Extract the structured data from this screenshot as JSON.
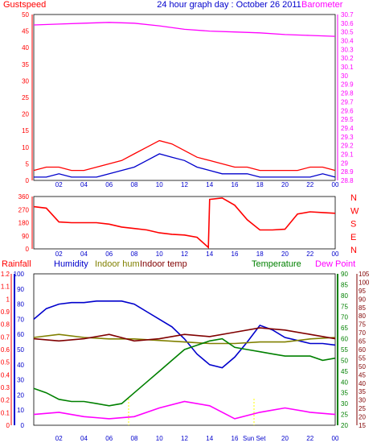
{
  "title": "24 hour graph day : October 26 2011",
  "colors": {
    "gust": "#ff0000",
    "wind": "#0000cc",
    "barometer": "#ff00ff",
    "direction": "#ff0000",
    "humidity": "#0000cc",
    "indoor_hum": "#808000",
    "indoor_temp": "#800000",
    "temperature": "#008000",
    "dew_point": "#ff00ff",
    "rainfall": "#ff0000",
    "sun": "#ffff00"
  },
  "panels": {
    "wind": {
      "left_label": "Gustspeed",
      "right_label": "Barometer",
      "left_ticks": [
        "0",
        "5",
        "10",
        "15",
        "20",
        "25",
        "30",
        "35",
        "40",
        "45",
        "50"
      ],
      "right_ticks": [
        "28.8",
        "28.9",
        "29",
        "29.1",
        "29.2",
        "29.3",
        "29.4",
        "29.5",
        "29.6",
        "29.7",
        "29.8",
        "29.9",
        "30",
        "30.1",
        "30.2",
        "30.3",
        "30.4",
        "30.5",
        "30.6",
        "30.7"
      ]
    },
    "direction": {
      "left_ticks": [
        "0",
        "90",
        "180",
        "270",
        "360"
      ],
      "right_letters": [
        "N",
        "W",
        "S",
        "E",
        "N"
      ]
    },
    "temp": {
      "labels": {
        "rainfall": "Rainfall",
        "humidity": "Humidity",
        "indoor_hum": "Indoor hum",
        "indoor_temp": "Indoor temp",
        "temperature": "Temperature",
        "dew_point": "Dew Point"
      },
      "rain_ticks": [
        "0",
        "0.1",
        "0.2",
        "0.3",
        "0.4",
        "0.5",
        "0.6",
        "0.7",
        "0.8",
        "0.9",
        "1",
        "1.1",
        "1.2"
      ],
      "hum_ticks": [
        "0",
        "10",
        "20",
        "30",
        "40",
        "50",
        "60",
        "70",
        "80",
        "90",
        "100"
      ],
      "temp_ticks": [
        "20",
        "25",
        "30",
        "35",
        "40",
        "45",
        "50",
        "55",
        "60",
        "65",
        "70",
        "75",
        "80",
        "85",
        "90"
      ],
      "dew_ticks": [
        "15",
        "20",
        "25",
        "30",
        "35",
        "40",
        "45",
        "50",
        "55",
        "60",
        "65",
        "70",
        "75",
        "80",
        "85",
        "90",
        "95",
        "100",
        "105"
      ],
      "sun_set": "Sun Set"
    }
  },
  "x_ticks": [
    "02",
    "04",
    "06",
    "08",
    "10",
    "12",
    "14",
    "16",
    "18",
    "20",
    "22",
    "00"
  ],
  "chart_data": {
    "type": "line",
    "title": "24 hour graph day : October 26 2011",
    "x_label": "",
    "panels": [
      {
        "series": [
          {
            "name": "Gustspeed",
            "unit_axis": "left",
            "x": [
              0,
              1,
              2,
              3,
              4,
              5,
              6,
              7,
              8,
              9,
              10,
              11,
              12,
              13,
              14,
              15,
              16,
              17,
              18,
              19,
              20,
              21,
              22,
              23,
              24
            ],
            "y": [
              3,
              4,
              4,
              3,
              3,
              4,
              5,
              6,
              8,
              10,
              12,
              11,
              9,
              7,
              6,
              5,
              4,
              4,
              3,
              3,
              3,
              3,
              4,
              4,
              3
            ]
          },
          {
            "name": "Windspeed",
            "unit_axis": "left",
            "x": [
              0,
              1,
              2,
              3,
              4,
              5,
              6,
              7,
              8,
              9,
              10,
              11,
              12,
              13,
              14,
              15,
              16,
              17,
              18,
              19,
              20,
              21,
              22,
              23,
              24
            ],
            "y": [
              1,
              1,
              2,
              1,
              1,
              1,
              2,
              3,
              4,
              6,
              8,
              7,
              6,
              4,
              3,
              2,
              2,
              2,
              1,
              1,
              1,
              1,
              1,
              2,
              1
            ]
          },
          {
            "name": "Barometer",
            "unit_axis": "right",
            "x": [
              0,
              2,
              4,
              6,
              8,
              10,
              12,
              14,
              16,
              18,
              20,
              22,
              24
            ],
            "y": [
              30.58,
              30.59,
              30.6,
              30.61,
              30.6,
              30.57,
              30.53,
              30.51,
              30.5,
              30.49,
              30.47,
              30.46,
              30.45
            ]
          }
        ],
        "ylim_left": [
          0,
          50
        ],
        "ylim_right": [
          28.8,
          30.7
        ]
      },
      {
        "series": [
          {
            "name": "Wind direction",
            "x": [
              0,
              1,
              2,
              3,
              4,
              5,
              6,
              7,
              8,
              9,
              10,
              11,
              12,
              13,
              13.9,
              14,
              15,
              16,
              17,
              18,
              19,
              20,
              21,
              22,
              23,
              24
            ],
            "y": [
              290,
              280,
              185,
              180,
              180,
              180,
              170,
              150,
              140,
              130,
              110,
              100,
              95,
              80,
              10,
              340,
              350,
              300,
              200,
              130,
              130,
              135,
              240,
              255,
              250,
              245
            ]
          }
        ],
        "ylim": [
          0,
          360
        ]
      },
      {
        "series": [
          {
            "name": "Humidity",
            "x": [
              0,
              1,
              2,
              3,
              4,
              5,
              6,
              7,
              8,
              9,
              10,
              11,
              12,
              13,
              14,
              15,
              16,
              17,
              18,
              19,
              20,
              21,
              22,
              23,
              24
            ],
            "y": [
              70,
              77,
              80,
              81,
              81,
              82,
              82,
              82,
              80,
              75,
              70,
              65,
              57,
              47,
              40,
              38,
              45,
              55,
              66,
              63,
              58,
              56,
              54,
              54,
              53
            ]
          },
          {
            "name": "Indoor hum",
            "x": [
              0,
              2,
              4,
              6,
              8,
              10,
              12,
              14,
              16,
              18,
              20,
              22,
              24
            ],
            "y": [
              58,
              60,
              58,
              57,
              57,
              56,
              55,
              54,
              54,
              55,
              55,
              57,
              58
            ]
          },
          {
            "name": "Indoor temp",
            "x": [
              0,
              2,
              4,
              6,
              8,
              10,
              12,
              14,
              16,
              18,
              20,
              22,
              24
            ],
            "y": [
              60,
              59,
              60,
              62,
              59,
              60,
              62,
              61,
              63,
              65,
              64,
              62,
              60
            ]
          },
          {
            "name": "Temperature",
            "x": [
              0,
              1,
              2,
              3,
              4,
              5,
              6,
              7,
              8,
              9,
              10,
              11,
              12,
              13,
              14,
              15,
              16,
              17,
              18,
              19,
              20,
              21,
              22,
              23,
              24
            ],
            "y": [
              37,
              35,
              32,
              31,
              31,
              30,
              29,
              30,
              35,
              40,
              45,
              50,
              55,
              57,
              59,
              60,
              56,
              55,
              54,
              53,
              52,
              52,
              52,
              50,
              51
            ]
          },
          {
            "name": "Dew Point",
            "x": [
              0,
              2,
              4,
              6,
              8,
              10,
              12,
              14,
              16,
              18,
              20,
              22,
              24
            ],
            "y": [
              25,
              26,
              24,
              23,
              24,
              28,
              31,
              29,
              23,
              26,
              28,
              26,
              25
            ]
          }
        ],
        "ylim_humidity": [
          0,
          100
        ],
        "ylim_temperature": [
          20,
          90
        ]
      }
    ]
  }
}
